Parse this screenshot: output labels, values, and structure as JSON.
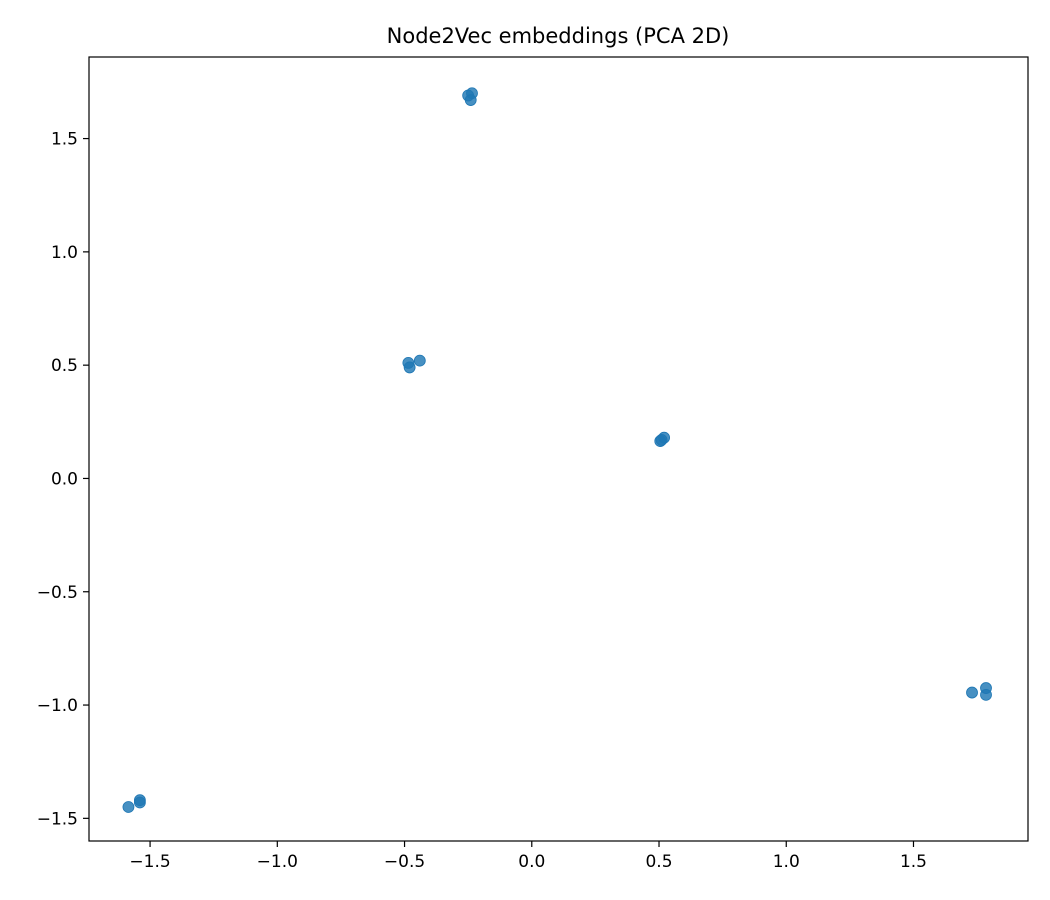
{
  "chart_data": {
    "type": "scatter",
    "title": "Node2Vec embeddings (PCA 2D)",
    "xlabel": "",
    "ylabel": "",
    "xlim": [
      -1.74,
      1.95
    ],
    "ylim": [
      -1.6,
      1.86
    ],
    "xticks": [
      -1.5,
      -1.0,
      -0.5,
      0.0,
      0.5,
      1.0,
      1.5
    ],
    "xtick_labels": [
      "−1.5",
      "−1.0",
      "−0.5",
      "0.0",
      "0.5",
      "1.0",
      "1.5"
    ],
    "yticks": [
      -1.5,
      -1.0,
      -0.5,
      0.0,
      0.5,
      1.0,
      1.5
    ],
    "ytick_labels": [
      "−1.5",
      "−1.0",
      "−0.5",
      "0.0",
      "0.5",
      "1.0",
      "1.5"
    ],
    "grid": false,
    "marker_color": "#1f77b4",
    "series": [
      {
        "points": [
          {
            "x": -0.25,
            "y": 1.69
          },
          {
            "x": -0.235,
            "y": 1.7
          },
          {
            "x": -0.24,
            "y": 1.67
          },
          {
            "x": -0.485,
            "y": 0.51
          },
          {
            "x": -0.48,
            "y": 0.49
          },
          {
            "x": -0.44,
            "y": 0.52
          },
          {
            "x": 0.505,
            "y": 0.165
          },
          {
            "x": 0.52,
            "y": 0.18
          },
          {
            "x": 0.51,
            "y": 0.17
          },
          {
            "x": 1.73,
            "y": -0.945
          },
          {
            "x": 1.785,
            "y": -0.925
          },
          {
            "x": 1.785,
            "y": -0.955
          },
          {
            "x": -1.585,
            "y": -1.45
          },
          {
            "x": -1.54,
            "y": -1.42
          },
          {
            "x": -1.54,
            "y": -1.43
          }
        ]
      }
    ]
  }
}
